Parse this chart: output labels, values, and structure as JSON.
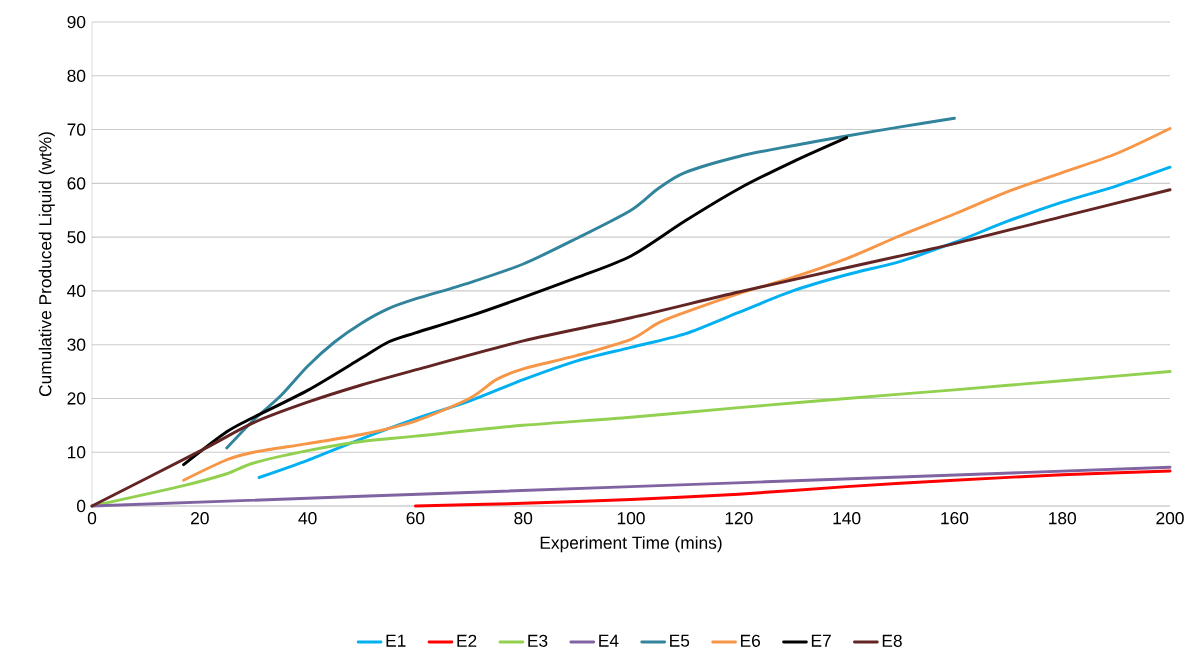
{
  "chart_data": {
    "type": "line",
    "xlabel": "Experiment Time (mins)",
    "ylabel": "Cumulative Produced Liquid (wt%)",
    "xlim": [
      0,
      200
    ],
    "ylim": [
      0,
      90
    ],
    "xticks": [
      0,
      20,
      40,
      60,
      80,
      100,
      120,
      140,
      160,
      180,
      200
    ],
    "yticks": [
      0,
      10,
      20,
      30,
      40,
      50,
      60,
      70,
      80,
      90
    ],
    "grid": "y",
    "legend": "bottom",
    "line_style": "solid",
    "series": [
      {
        "name": "E1",
        "color": "#00b0f0",
        "x": [
          31,
          40,
          50,
          60,
          70,
          80,
          90,
          100,
          110,
          120,
          130,
          140,
          150,
          160,
          170,
          180,
          190,
          200
        ],
        "values": [
          5.3,
          8.5,
          12.5,
          16.2,
          19.5,
          23.5,
          27,
          29.5,
          32,
          36,
          40,
          43,
          45.5,
          49,
          53,
          56.5,
          59.5,
          63
        ]
      },
      {
        "name": "E2",
        "color": "#ff0000",
        "x": [
          60,
          80,
          100,
          120,
          140,
          160,
          180,
          200
        ],
        "values": [
          0,
          0.5,
          1.2,
          2.2,
          3.6,
          4.8,
          5.8,
          6.5
        ]
      },
      {
        "name": "E3",
        "color": "#92d050",
        "x": [
          0,
          17,
          25,
          30,
          40,
          50,
          60,
          80,
          100,
          120,
          140,
          160,
          180,
          200
        ],
        "values": [
          0,
          3.8,
          6,
          8,
          10.3,
          12,
          13,
          15,
          16.5,
          18.3,
          20,
          21.6,
          23.3,
          25
        ]
      },
      {
        "name": "E4",
        "color": "#8064a2",
        "x": [
          0,
          50,
          100,
          150,
          200
        ],
        "values": [
          0,
          1.8,
          3.6,
          5.4,
          7.2
        ]
      },
      {
        "name": "E5",
        "color": "#31849b",
        "x": [
          25,
          30,
          35,
          40,
          45,
          50,
          55,
          60,
          70,
          80,
          90,
          100,
          105,
          110,
          120,
          130,
          140,
          150,
          160
        ],
        "values": [
          10.8,
          16,
          20.5,
          26,
          30.5,
          34,
          36.7,
          38.5,
          41.5,
          45,
          49.8,
          55,
          59,
          62,
          65,
          67,
          68.8,
          70.5,
          72.1
        ]
      },
      {
        "name": "E6",
        "color": "#f79646",
        "x": [
          17,
          25,
          30,
          40,
          50,
          60,
          70,
          75,
          80,
          90,
          100,
          105,
          110,
          120,
          130,
          140,
          150,
          160,
          170,
          180,
          190,
          200
        ],
        "values": [
          4.8,
          8.6,
          10,
          11.6,
          13.3,
          15.8,
          20,
          23.5,
          25.5,
          28,
          31,
          34,
          36,
          39.5,
          42.5,
          46,
          50.3,
          54.3,
          58.5,
          62,
          65.5,
          70.2
        ]
      },
      {
        "name": "E7",
        "color": "#000000",
        "x": [
          17,
          25,
          30,
          40,
          50,
          55,
          60,
          70,
          80,
          90,
          100,
          110,
          120,
          130,
          140
        ],
        "values": [
          7.7,
          13.8,
          16.5,
          21.5,
          27.5,
          30.5,
          32.2,
          35.3,
          38.8,
          42.5,
          46.5,
          53,
          59,
          64,
          68.5
        ]
      },
      {
        "name": "E8",
        "color": "#632523",
        "x": [
          0,
          20,
          30,
          40,
          50,
          60,
          80,
          100,
          120,
          140,
          160,
          180,
          200
        ],
        "values": [
          0,
          10.2,
          15.5,
          19.3,
          22.5,
          25.3,
          30.7,
          35,
          39.8,
          44.3,
          48.8,
          53.8,
          58.8
        ]
      }
    ]
  }
}
